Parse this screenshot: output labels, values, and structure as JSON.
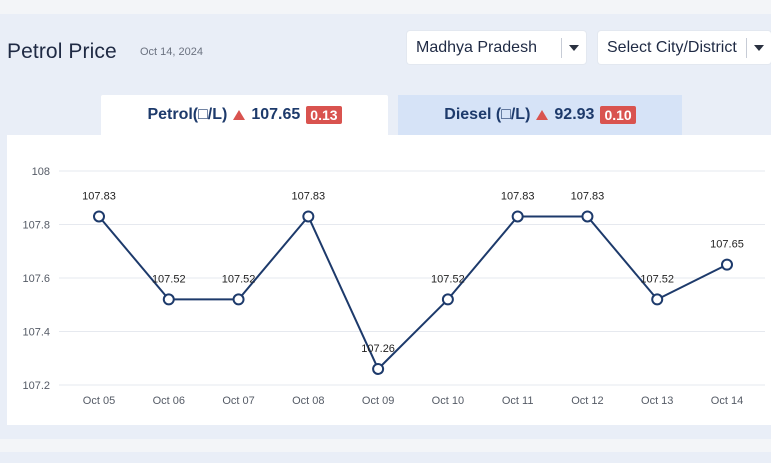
{
  "header": {
    "title": "Petrol Price",
    "date": "Oct 14, 2024",
    "state_select": "Madhya Pradesh",
    "city_select": "Select City/District"
  },
  "tabs": [
    {
      "label": "Petrol(□/L)",
      "price": "107.65",
      "change": "0.13",
      "trend": "up"
    },
    {
      "label": "Diesel (□/L)",
      "price": "92.93",
      "change": "0.10",
      "trend": "up"
    }
  ],
  "colors": {
    "line": "#1d3a6b",
    "badge": "#d9534f",
    "active_tab": "#ffffff",
    "inactive_tab": "#d6e3f7"
  },
  "chart_data": {
    "type": "line",
    "categories": [
      "Oct 05",
      "Oct 06",
      "Oct 07",
      "Oct 08",
      "Oct 09",
      "Oct 10",
      "Oct 11",
      "Oct 12",
      "Oct 13",
      "Oct 14"
    ],
    "values": [
      107.83,
      107.52,
      107.52,
      107.83,
      107.26,
      107.52,
      107.83,
      107.83,
      107.52,
      107.65
    ],
    "data_labels": [
      "107.83",
      "107.52",
      "107.52",
      "107.83",
      "107.26",
      "107.52",
      "107.83",
      "107.83",
      "107.52",
      "107.65"
    ],
    "yticks": [
      "107.2",
      "107.4",
      "107.6",
      "107.8",
      "108"
    ],
    "ylim": [
      107.2,
      108
    ],
    "grid": true,
    "legend": "none",
    "title": "",
    "xlabel": "",
    "ylabel": ""
  }
}
